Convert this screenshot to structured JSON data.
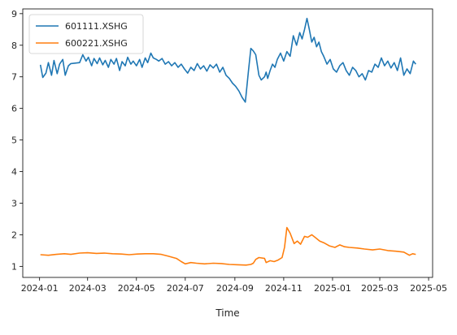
{
  "chart_data": {
    "type": "line",
    "title": "",
    "xlabel": "Time",
    "ylabel": "",
    "ylim": [
      0.65,
      9.15
    ],
    "xlim": [
      "2023-12-11",
      "2025-05-06"
    ],
    "grid": false,
    "legend_position": "top-left",
    "y_ticks": [
      1,
      2,
      3,
      4,
      5,
      6,
      7,
      8,
      9
    ],
    "x_ticks": [
      "2024-01",
      "2024-03",
      "2024-05",
      "2024-07",
      "2024-09",
      "2024-11",
      "2025-01",
      "2025-03",
      "2025-05"
    ],
    "x_tick_dates": [
      "2024-01-01",
      "2024-03-01",
      "2024-05-01",
      "2024-07-01",
      "2024-09-01",
      "2024-11-01",
      "2025-01-01",
      "2025-03-01",
      "2025-05-01"
    ],
    "series": [
      {
        "name": "601111.XSHG",
        "color": "#1f77b4",
        "x": [
          "2024-01-02",
          "2024-01-05",
          "2024-01-09",
          "2024-01-12",
          "2024-01-16",
          "2024-01-19",
          "2024-01-23",
          "2024-01-26",
          "2024-01-30",
          "2024-02-02",
          "2024-02-06",
          "2024-02-09",
          "2024-02-20",
          "2024-02-24",
          "2024-02-28",
          "2024-03-02",
          "2024-03-06",
          "2024-03-09",
          "2024-03-13",
          "2024-03-16",
          "2024-03-20",
          "2024-03-23",
          "2024-03-27",
          "2024-03-30",
          "2024-04-03",
          "2024-04-06",
          "2024-04-10",
          "2024-04-13",
          "2024-04-17",
          "2024-04-20",
          "2024-04-24",
          "2024-04-27",
          "2024-05-01",
          "2024-05-05",
          "2024-05-08",
          "2024-05-12",
          "2024-05-15",
          "2024-05-19",
          "2024-05-22",
          "2024-05-26",
          "2024-05-29",
          "2024-06-02",
          "2024-06-06",
          "2024-06-10",
          "2024-06-14",
          "2024-06-18",
          "2024-06-22",
          "2024-06-26",
          "2024-06-30",
          "2024-07-04",
          "2024-07-08",
          "2024-07-12",
          "2024-07-16",
          "2024-07-20",
          "2024-07-24",
          "2024-07-28",
          "2024-08-01",
          "2024-08-05",
          "2024-08-09",
          "2024-08-13",
          "2024-08-17",
          "2024-08-21",
          "2024-08-25",
          "2024-08-29",
          "2024-09-02",
          "2024-09-06",
          "2024-09-10",
          "2024-09-14",
          "2024-09-18",
          "2024-09-21",
          "2024-09-24",
          "2024-09-27",
          "2024-10-01",
          "2024-10-04",
          "2024-10-08",
          "2024-10-10",
          "2024-10-12",
          "2024-10-15",
          "2024-10-18",
          "2024-10-21",
          "2024-10-24",
          "2024-10-28",
          "2024-11-01",
          "2024-11-05",
          "2024-11-09",
          "2024-11-13",
          "2024-11-17",
          "2024-11-21",
          "2024-11-24",
          "2024-11-27",
          "2024-11-30",
          "2024-12-03",
          "2024-12-06",
          "2024-12-09",
          "2024-12-12",
          "2024-12-15",
          "2024-12-18",
          "2024-12-21",
          "2024-12-25",
          "2024-12-29",
          "2025-01-02",
          "2025-01-06",
          "2025-01-10",
          "2025-01-14",
          "2025-01-18",
          "2025-01-22",
          "2025-01-26",
          "2025-01-30",
          "2025-02-03",
          "2025-02-07",
          "2025-02-11",
          "2025-02-15",
          "2025-02-19",
          "2025-02-23",
          "2025-02-27",
          "2025-03-03",
          "2025-03-07",
          "2025-03-11",
          "2025-03-15",
          "2025-03-19",
          "2025-03-23",
          "2025-03-27",
          "2025-03-31",
          "2025-04-04",
          "2025-04-08",
          "2025-04-12",
          "2025-04-15"
        ],
        "values": [
          7.38,
          6.98,
          7.12,
          7.45,
          7.05,
          7.52,
          7.1,
          7.4,
          7.55,
          7.05,
          7.35,
          7.42,
          7.45,
          7.7,
          7.5,
          7.62,
          7.35,
          7.58,
          7.42,
          7.6,
          7.38,
          7.52,
          7.3,
          7.55,
          7.4,
          7.58,
          7.2,
          7.48,
          7.35,
          7.62,
          7.4,
          7.5,
          7.35,
          7.55,
          7.3,
          7.6,
          7.45,
          7.75,
          7.6,
          7.55,
          7.5,
          7.58,
          7.4,
          7.48,
          7.35,
          7.45,
          7.3,
          7.4,
          7.25,
          7.12,
          7.3,
          7.2,
          7.42,
          7.25,
          7.35,
          7.18,
          7.38,
          7.28,
          7.4,
          7.15,
          7.3,
          7.05,
          6.95,
          6.8,
          6.7,
          6.55,
          6.35,
          6.2,
          7.2,
          7.9,
          7.82,
          7.7,
          7.05,
          6.9,
          7.0,
          7.15,
          6.95,
          7.2,
          7.4,
          7.3,
          7.55,
          7.75,
          7.5,
          7.8,
          7.65,
          8.3,
          8.0,
          8.4,
          8.2,
          8.5,
          8.85,
          8.5,
          8.1,
          8.25,
          7.95,
          8.1,
          7.8,
          7.65,
          7.4,
          7.55,
          7.25,
          7.15,
          7.35,
          7.45,
          7.2,
          7.05,
          7.3,
          7.2,
          7.0,
          7.1,
          6.9,
          7.2,
          7.15,
          7.4,
          7.3,
          7.6,
          7.35,
          7.5,
          7.28,
          7.45,
          7.2,
          7.6,
          7.05,
          7.25,
          7.1,
          7.5,
          7.4
        ]
      },
      {
        "name": "600221.XSHG",
        "color": "#ff7f0e",
        "x": [
          "2024-01-02",
          "2024-01-12",
          "2024-01-22",
          "2024-02-01",
          "2024-02-09",
          "2024-02-20",
          "2024-03-01",
          "2024-03-12",
          "2024-03-22",
          "2024-04-01",
          "2024-04-12",
          "2024-04-22",
          "2024-05-02",
          "2024-05-12",
          "2024-05-22",
          "2024-06-01",
          "2024-06-10",
          "2024-06-20",
          "2024-06-26",
          "2024-07-01",
          "2024-07-08",
          "2024-07-15",
          "2024-07-25",
          "2024-08-05",
          "2024-08-15",
          "2024-08-25",
          "2024-09-05",
          "2024-09-15",
          "2024-09-21",
          "2024-09-24",
          "2024-09-27",
          "2024-10-01",
          "2024-10-08",
          "2024-10-10",
          "2024-10-15",
          "2024-10-20",
          "2024-10-25",
          "2024-10-30",
          "2024-11-02",
          "2024-11-05",
          "2024-11-09",
          "2024-11-14",
          "2024-11-18",
          "2024-11-22",
          "2024-11-27",
          "2024-12-01",
          "2024-12-06",
          "2024-12-11",
          "2024-12-16",
          "2024-12-21",
          "2024-12-28",
          "2025-01-04",
          "2025-01-10",
          "2025-01-16",
          "2025-01-22",
          "2025-02-01",
          "2025-02-10",
          "2025-02-20",
          "2025-03-01",
          "2025-03-11",
          "2025-03-21",
          "2025-03-31",
          "2025-04-07",
          "2025-04-11",
          "2025-04-15"
        ],
        "values": [
          1.37,
          1.35,
          1.38,
          1.4,
          1.38,
          1.42,
          1.43,
          1.41,
          1.42,
          1.4,
          1.39,
          1.37,
          1.39,
          1.4,
          1.4,
          1.38,
          1.32,
          1.25,
          1.15,
          1.08,
          1.12,
          1.1,
          1.08,
          1.1,
          1.09,
          1.06,
          1.05,
          1.04,
          1.06,
          1.1,
          1.22,
          1.28,
          1.25,
          1.12,
          1.18,
          1.15,
          1.2,
          1.28,
          1.6,
          2.23,
          2.05,
          1.72,
          1.8,
          1.7,
          1.95,
          1.92,
          2.0,
          1.9,
          1.8,
          1.75,
          1.65,
          1.6,
          1.68,
          1.62,
          1.6,
          1.58,
          1.55,
          1.52,
          1.55,
          1.5,
          1.48,
          1.45,
          1.35,
          1.4,
          1.38
        ]
      }
    ]
  }
}
